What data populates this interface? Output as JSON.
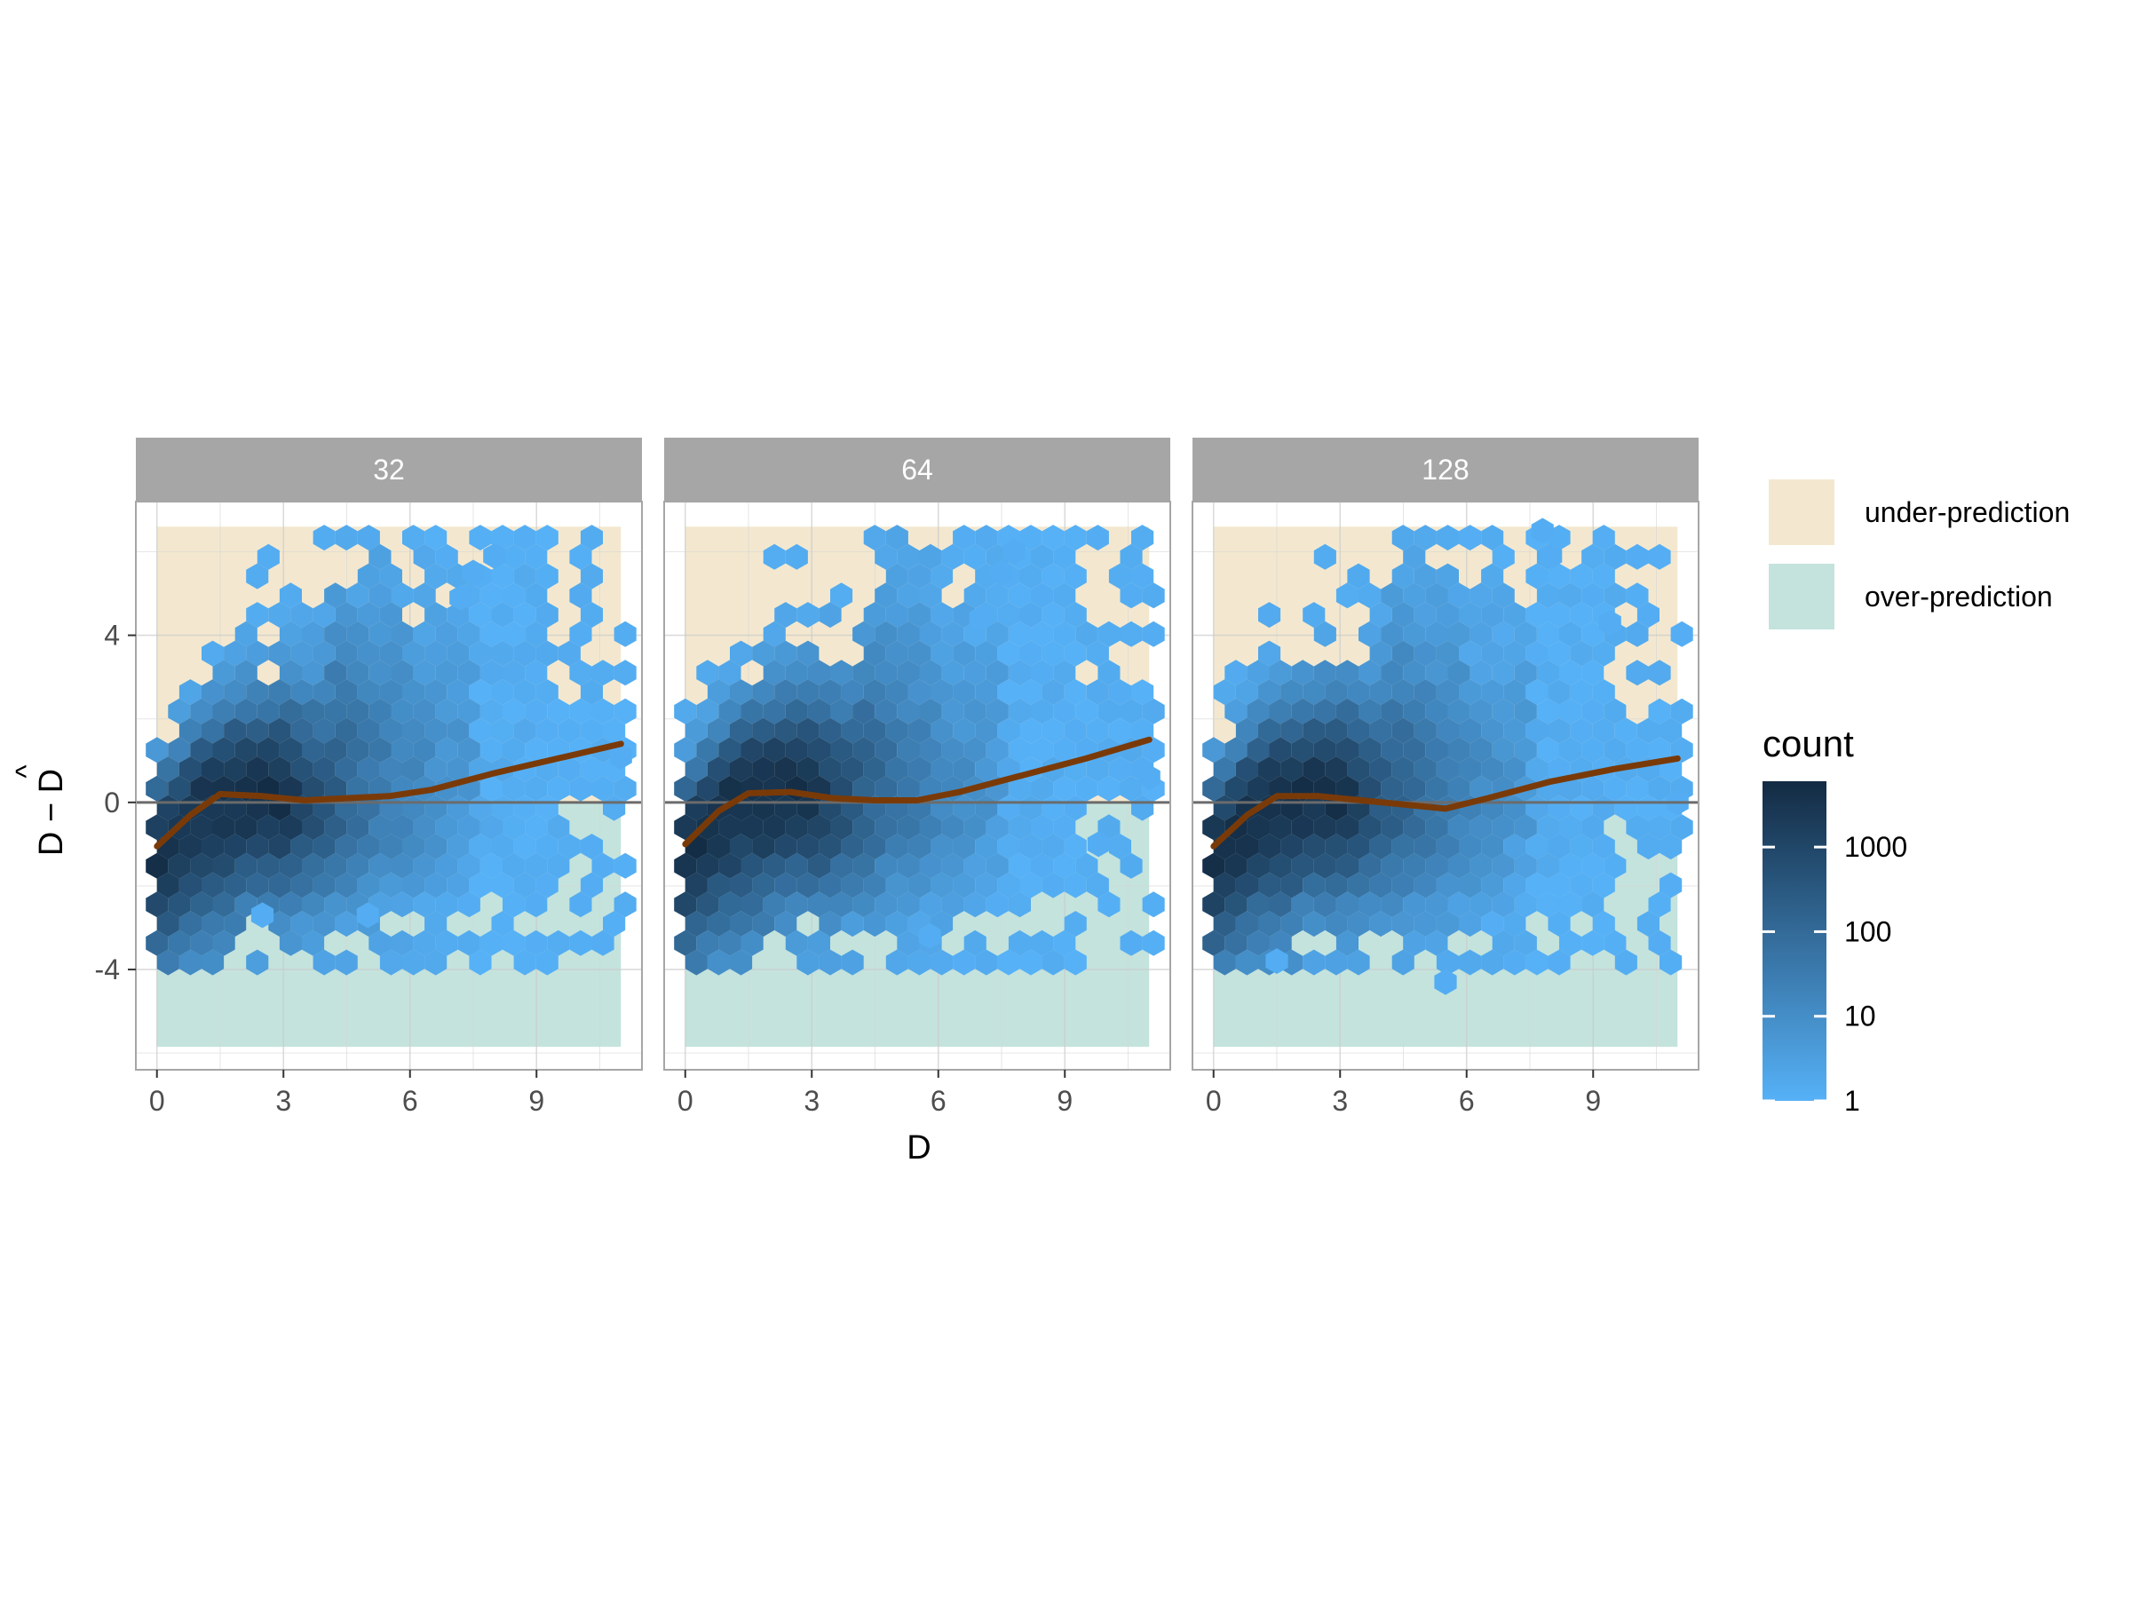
{
  "chart_data": {
    "type": "hexbin",
    "facets": [
      "32",
      "64",
      "128"
    ],
    "xlabel": "D",
    "ylabel_main": "D − D",
    "ylabel_hat": "^",
    "xlim": [
      -0.5,
      11.5
    ],
    "ylim": [
      -6.4,
      7.2
    ],
    "x_ticks": [
      0,
      3,
      6,
      9
    ],
    "x_tick_labels": [
      "0",
      "3",
      "6",
      "9"
    ],
    "y_ticks": [
      -4,
      0,
      4
    ],
    "y_tick_labels": [
      "-4",
      "0",
      "4"
    ],
    "reference_line_y": 0,
    "regions": [
      {
        "label": "under-prediction",
        "y_from": 0,
        "y_to": 6.6,
        "x_from": 0,
        "x_to": 11,
        "color": "#F3E8CF"
      },
      {
        "label": "over-prediction",
        "y_from": -5.85,
        "y_to": 0,
        "x_from": 0,
        "x_to": 11,
        "color": "#C4E3DD"
      }
    ],
    "trend_line_color": "#7A3A08",
    "trend_lines": [
      {
        "facet": "32",
        "points": [
          [
            0,
            -1.05
          ],
          [
            0.8,
            -0.3
          ],
          [
            1.5,
            0.2
          ],
          [
            2.5,
            0.15
          ],
          [
            3.5,
            0.05
          ],
          [
            4.5,
            0.1
          ],
          [
            5.5,
            0.15
          ],
          [
            6.5,
            0.3
          ],
          [
            8,
            0.7
          ],
          [
            9.5,
            1.05
          ],
          [
            11,
            1.4
          ]
        ]
      },
      {
        "facet": "64",
        "points": [
          [
            0,
            -1.0
          ],
          [
            0.8,
            -0.2
          ],
          [
            1.5,
            0.22
          ],
          [
            2.5,
            0.25
          ],
          [
            3.5,
            0.1
          ],
          [
            4.5,
            0.05
          ],
          [
            5.5,
            0.05
          ],
          [
            6.5,
            0.25
          ],
          [
            8,
            0.65
          ],
          [
            9.5,
            1.05
          ],
          [
            11,
            1.5
          ]
        ]
      },
      {
        "facet": "128",
        "points": [
          [
            0,
            -1.05
          ],
          [
            0.8,
            -0.3
          ],
          [
            1.5,
            0.15
          ],
          [
            2.5,
            0.15
          ],
          [
            3.5,
            0.05
          ],
          [
            4.5,
            -0.05
          ],
          [
            5.5,
            -0.15
          ],
          [
            6.5,
            0.1
          ],
          [
            8,
            0.5
          ],
          [
            9.5,
            0.8
          ],
          [
            11,
            1.05
          ]
        ]
      }
    ],
    "legend_regions_title": "",
    "legend_count_title": "count",
    "color_scale": {
      "low": "#56B1F7",
      "high": "#132B43",
      "transform": "log10",
      "min": 1,
      "max": 6000
    },
    "count_ticks": [
      1,
      10,
      100,
      1000
    ],
    "count_tick_labels": [
      "1",
      "10",
      "100",
      "1000"
    ]
  }
}
